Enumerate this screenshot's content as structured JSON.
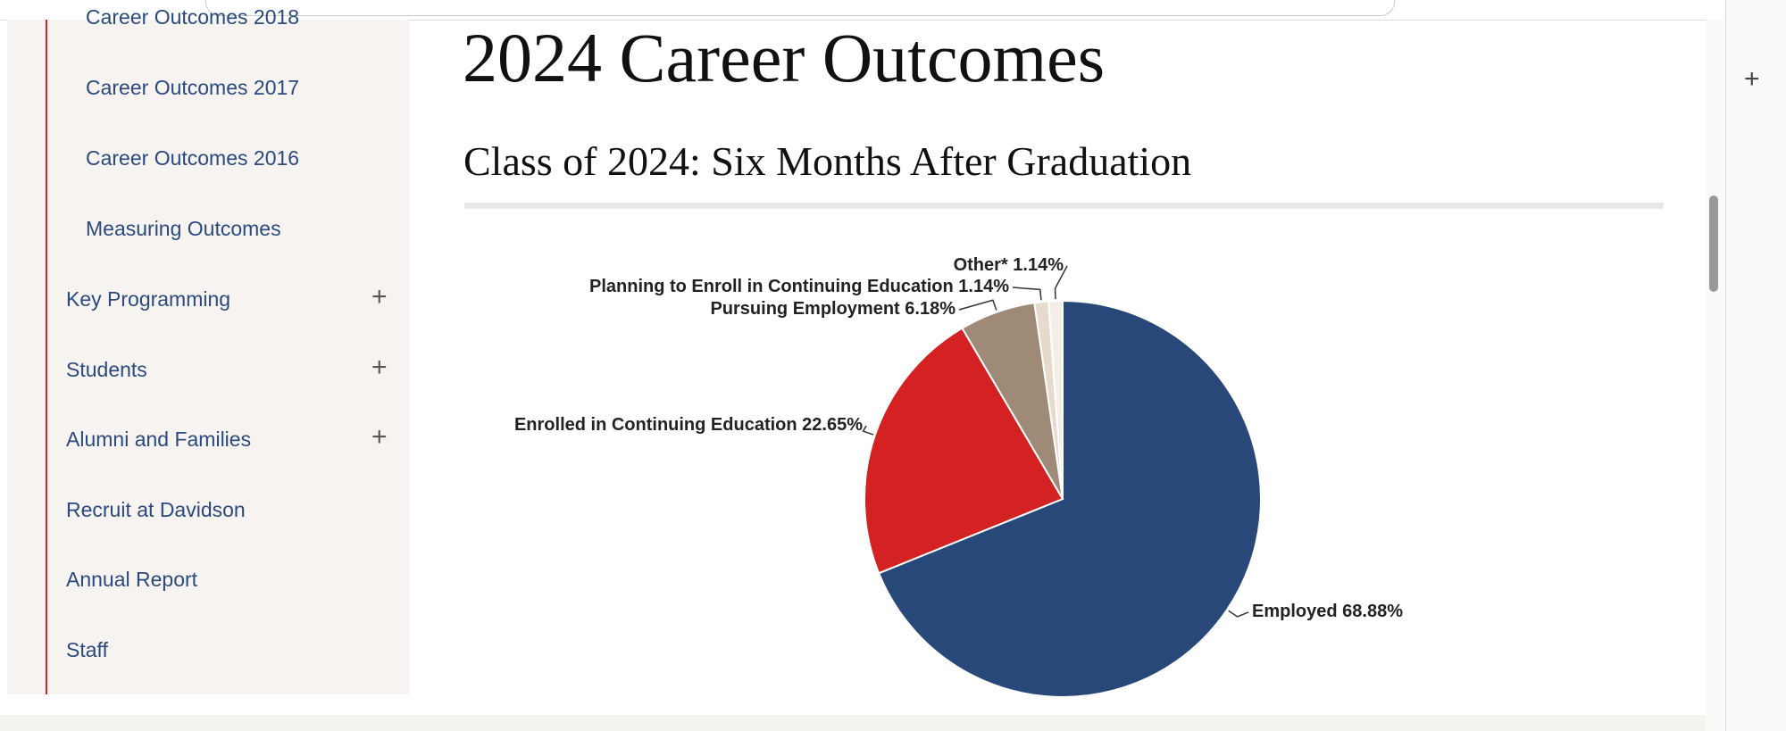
{
  "sidebar": {
    "items": [
      "Career Outcomes 2018",
      "Career Outcomes 2017",
      "Career Outcomes 2016",
      "Measuring Outcomes",
      "Key Programming",
      "Students",
      "Alumni and Families",
      "Recruit at Davidson",
      "Annual Report",
      "Staff"
    ]
  },
  "heading": "2024 Career Outcomes",
  "subheading": "Class of 2024: Six Months After Graduation",
  "chart_data": {
    "type": "pie",
    "categories": [
      "Employed",
      "Enrolled in Continuing Education",
      "Pursuing Employment",
      "Planning to Enroll in Continuing Education",
      "Other*"
    ],
    "values": [
      68.88,
      22.65,
      6.18,
      1.14,
      1.14
    ],
    "value_labels": [
      "68.88%",
      "22.65%",
      "6.18%",
      "1.14%",
      "1.14%"
    ],
    "colors": [
      "#29487a",
      "#d42121",
      "#9e8a76",
      "#e6dacd",
      "#f4eee8"
    ]
  }
}
